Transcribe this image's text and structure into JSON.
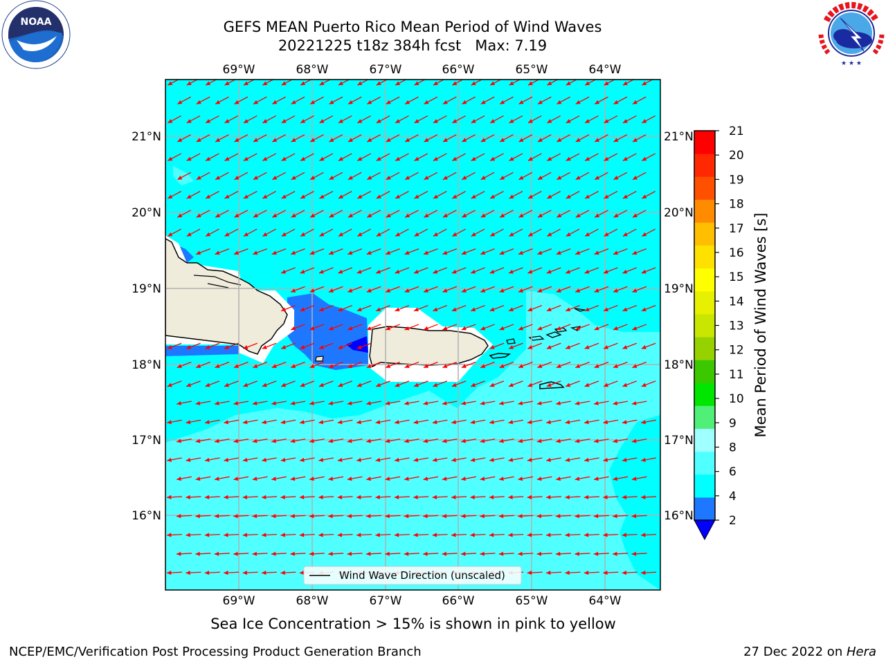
{
  "header": {
    "title_line1": "GEFS MEAN Puerto Rico Mean Period of Wind Waves",
    "title_line2": "20221225 t18z 384h fcst   Max: 7.19"
  },
  "logos": {
    "left": {
      "name": "noaa-logo",
      "text": "NOAA",
      "ring_text": "NATIONAL OCEANIC AND ATMOSPHERIC ADMINISTRATION · U.S. DEPARTMENT OF COMMERCE"
    },
    "right": {
      "name": "nws-logo",
      "ring_text": "NATIONAL WEATHER SERVICE"
    }
  },
  "map": {
    "lon_labels": [
      "69°W",
      "68°W",
      "67°W",
      "66°W",
      "65°W",
      "64°W"
    ],
    "lat_labels": [
      "21°N",
      "20°N",
      "19°N",
      "18°N",
      "17°N",
      "16°N"
    ],
    "legend_label": "Wind Wave Direction (unscaled)",
    "arrow_color": "#ff0000",
    "grid_color": "#b0b0b0"
  },
  "colorbar": {
    "label": "Mean Period of Wind Waves [s]",
    "ticks": [
      "2",
      "4",
      "6",
      "8",
      "9",
      "10",
      "11",
      "12",
      "13",
      "14",
      "15",
      "16",
      "17",
      "18",
      "19",
      "20",
      "21"
    ],
    "colors": [
      "#1e78ff",
      "#00ffff",
      "#50ffff",
      "#a0ffff",
      "#50f078",
      "#00e600",
      "#3cc800",
      "#96d200",
      "#c8e600",
      "#e6f000",
      "#ffff00",
      "#ffe100",
      "#ffbe00",
      "#ff8c00",
      "#ff5000",
      "#ff2800",
      "#ff0000"
    ],
    "under_color": "#0000ff"
  },
  "caption": "Sea Ice Concentration > 15% is shown in pink to yellow",
  "footer": {
    "left": "NCEP/EMC/Verification Post Processing Product Generation Branch",
    "right_prefix": "27 Dec 2022 on ",
    "right_host": "Hera"
  }
}
